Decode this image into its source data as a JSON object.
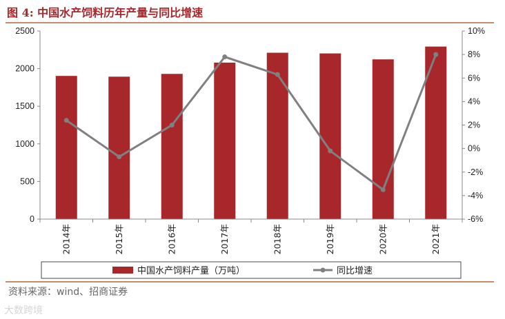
{
  "title": "图 4:  中国水产饲料历年产量与同比增速",
  "source": "资料来源：wind、招商证券",
  "watermark": "大数跨境",
  "chart_data": {
    "type": "bar+line",
    "categories": [
      "2014年",
      "2015年",
      "2016年",
      "2017年",
      "2018年",
      "2019年",
      "2020年",
      "2021年"
    ],
    "series": [
      {
        "name": "中国水产饲料产量（万吨）",
        "type": "bar",
        "axis": "left",
        "color": "#a8272b",
        "values": [
          1903,
          1893,
          1930,
          2080,
          2211,
          2202,
          2123,
          2293
        ]
      },
      {
        "name": "同比增速",
        "type": "line",
        "axis": "right",
        "color": "#808080",
        "values": [
          2.4,
          -0.7,
          2.0,
          7.8,
          6.3,
          -0.2,
          -3.5,
          8.0
        ]
      }
    ],
    "y_left": {
      "min": 0,
      "max": 2500,
      "step": 500,
      "ticks": [
        "0",
        "500",
        "1000",
        "1500",
        "2000",
        "2500"
      ]
    },
    "y_right": {
      "min": -6,
      "max": 10,
      "step": 2,
      "ticks": [
        "-6%",
        "-4%",
        "-2%",
        "0%",
        "2%",
        "4%",
        "6%",
        "8%",
        "10%"
      ]
    },
    "grid": false,
    "legend": "bottom"
  }
}
